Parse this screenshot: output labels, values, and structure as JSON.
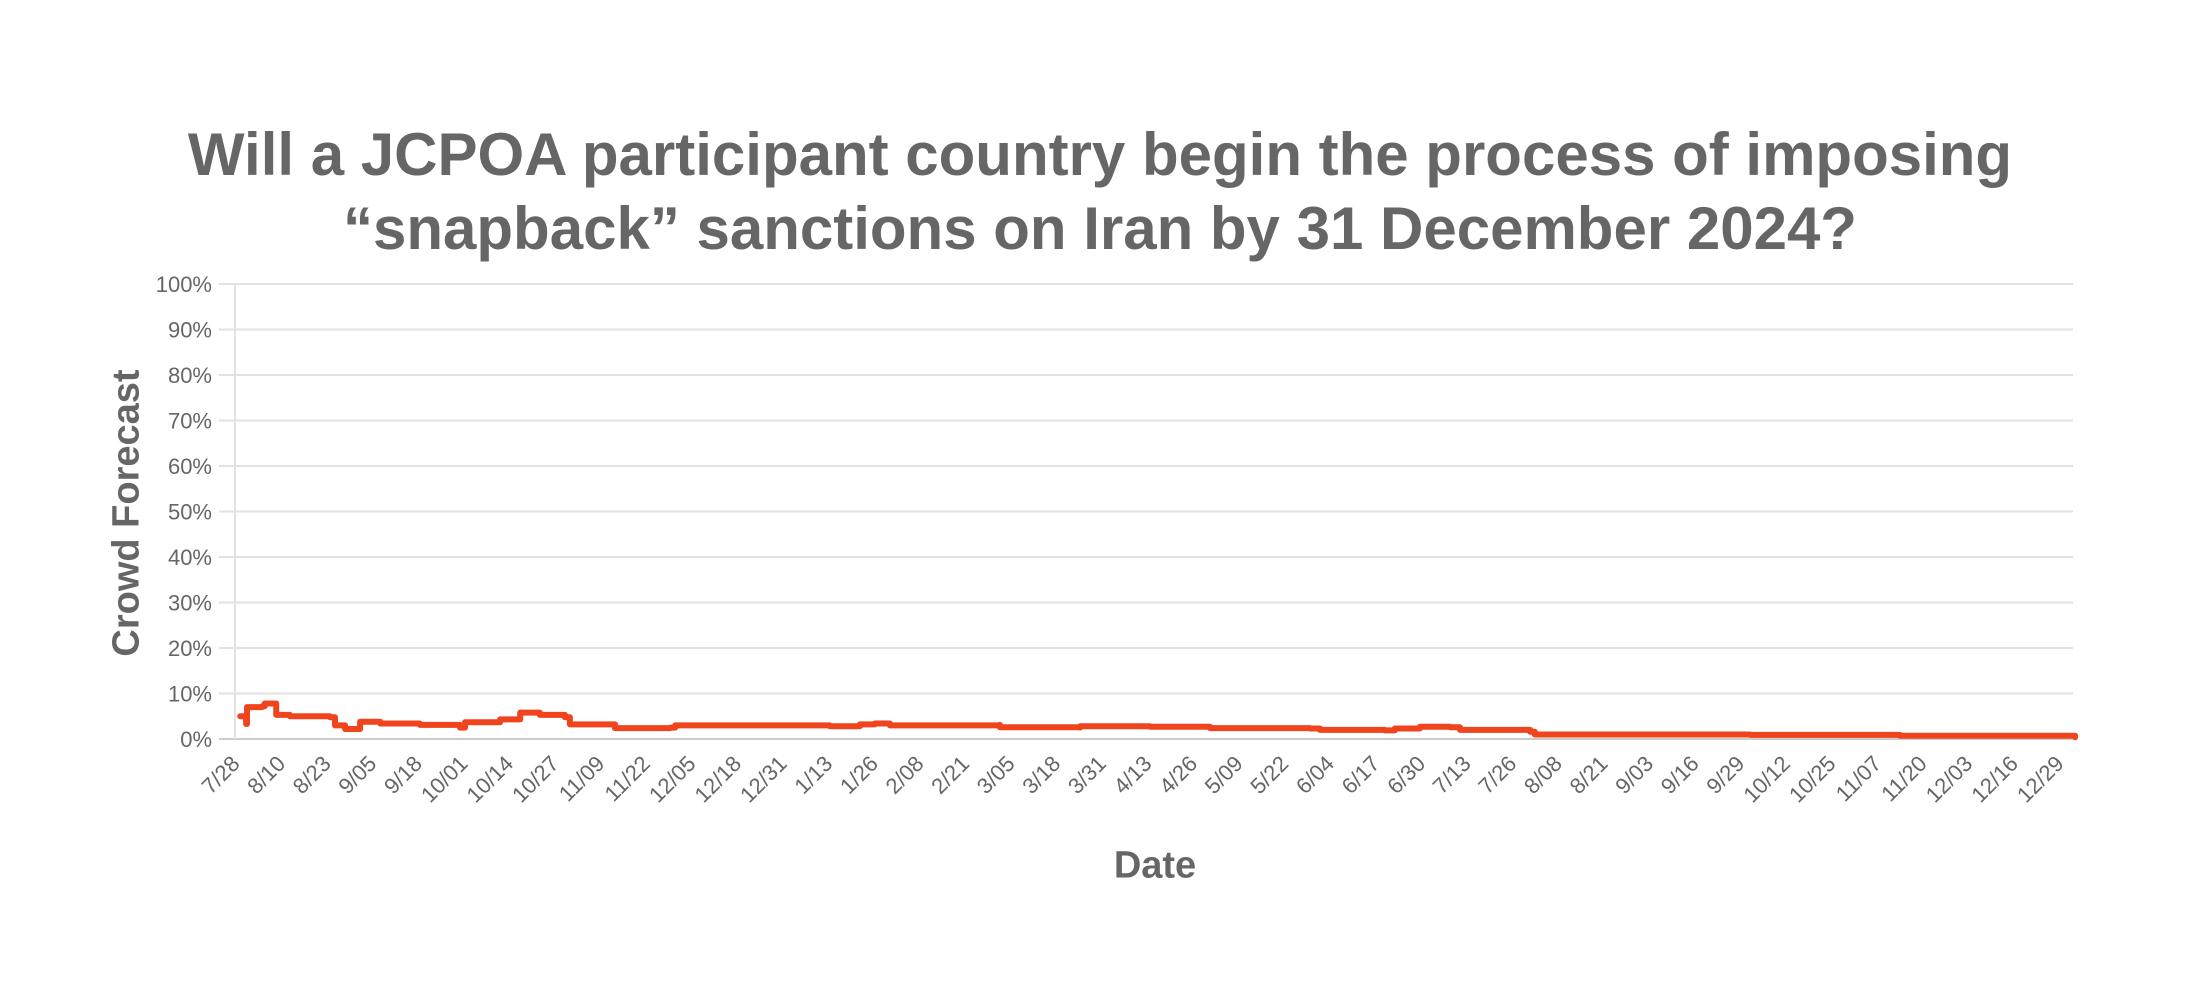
{
  "title_lines": [
    "Will a JCPOA participant country begin the process of imposing",
    "“snapback” sanctions on Iran by 31 December 2024?"
  ],
  "colors": {
    "line": "#F0441E",
    "grid": "#E2E2E2",
    "axis": "#CCCCCC",
    "text": "#666666"
  },
  "chart_data": {
    "type": "line",
    "title": "Will a JCPOA participant country begin the process of imposing “snapback” sanctions on Iran by 31 December 2024?",
    "xlabel": "Date",
    "ylabel": "Crowd Forecast",
    "ylim": [
      0,
      100
    ],
    "yticks": [
      "0%",
      "10%",
      "20%",
      "30%",
      "40%",
      "50%",
      "60%",
      "70%",
      "80%",
      "90%",
      "100%"
    ],
    "grid": true,
    "legend": null,
    "x_tick_labels": [
      "7/28",
      "8/10",
      "8/23",
      "9/05",
      "9/18",
      "10/01",
      "10/14",
      "10/27",
      "11/09",
      "11/22",
      "12/05",
      "12/18",
      "12/31",
      "1/13",
      "1/26",
      "2/08",
      "2/21",
      "3/05",
      "3/18",
      "3/31",
      "4/13",
      "4/26",
      "5/09",
      "5/22",
      "6/04",
      "6/17",
      "6/30",
      "7/13",
      "7/26",
      "8/08",
      "8/21",
      "9/03",
      "9/16",
      "9/29",
      "10/12",
      "10/25",
      "11/07",
      "11/20",
      "12/03",
      "12/16",
      "12/29"
    ],
    "x_units": "tick index (0 = 7/28, each tick = 13 days)",
    "series": [
      {
        "name": "Crowd Forecast",
        "step": true,
        "points": [
          [
            0.07,
            5.0
          ],
          [
            0.2,
            3.3
          ],
          [
            0.22,
            7.0
          ],
          [
            0.55,
            7.2
          ],
          [
            0.61,
            7.8
          ],
          [
            0.86,
            7.8
          ],
          [
            0.86,
            5.3
          ],
          [
            1.16,
            5.0
          ],
          [
            2.04,
            4.8
          ],
          [
            2.15,
            3.0
          ],
          [
            2.37,
            2.2
          ],
          [
            2.7,
            2.2
          ],
          [
            2.7,
            3.8
          ],
          [
            3.14,
            3.4
          ],
          [
            4.01,
            3.1
          ],
          [
            4.89,
            3.0
          ],
          [
            4.89,
            2.5
          ],
          [
            5.0,
            2.5
          ],
          [
            5.0,
            3.7
          ],
          [
            5.77,
            3.7
          ],
          [
            5.77,
            4.3
          ],
          [
            6.21,
            4.3
          ],
          [
            6.21,
            5.8
          ],
          [
            6.64,
            5.3
          ],
          [
            7.19,
            5.3
          ],
          [
            7.19,
            4.8
          ],
          [
            7.3,
            4.8
          ],
          [
            7.3,
            3.2
          ],
          [
            8.29,
            3.2
          ],
          [
            8.29,
            2.4
          ],
          [
            9.5,
            2.5
          ],
          [
            9.61,
            3.0
          ],
          [
            13.0,
            2.8
          ],
          [
            13.66,
            3.2
          ],
          [
            13.99,
            3.4
          ],
          [
            14.32,
            3.0
          ],
          [
            16.73,
            3.1
          ],
          [
            16.73,
            2.6
          ],
          [
            18.49,
            2.5
          ],
          [
            18.49,
            2.8
          ],
          [
            20.02,
            2.7
          ],
          [
            21.34,
            2.7
          ],
          [
            21.34,
            2.4
          ],
          [
            23.53,
            2.3
          ],
          [
            23.75,
            2.0
          ],
          [
            25.17,
            1.9
          ],
          [
            25.39,
            2.3
          ],
          [
            25.94,
            2.7
          ],
          [
            26.6,
            2.6
          ],
          [
            26.82,
            2.0
          ],
          [
            28.36,
            1.6
          ],
          [
            28.46,
            1.0
          ],
          [
            33.18,
            0.9
          ],
          [
            36.47,
            0.7
          ],
          [
            40.31,
            0.4
          ]
        ]
      }
    ]
  }
}
